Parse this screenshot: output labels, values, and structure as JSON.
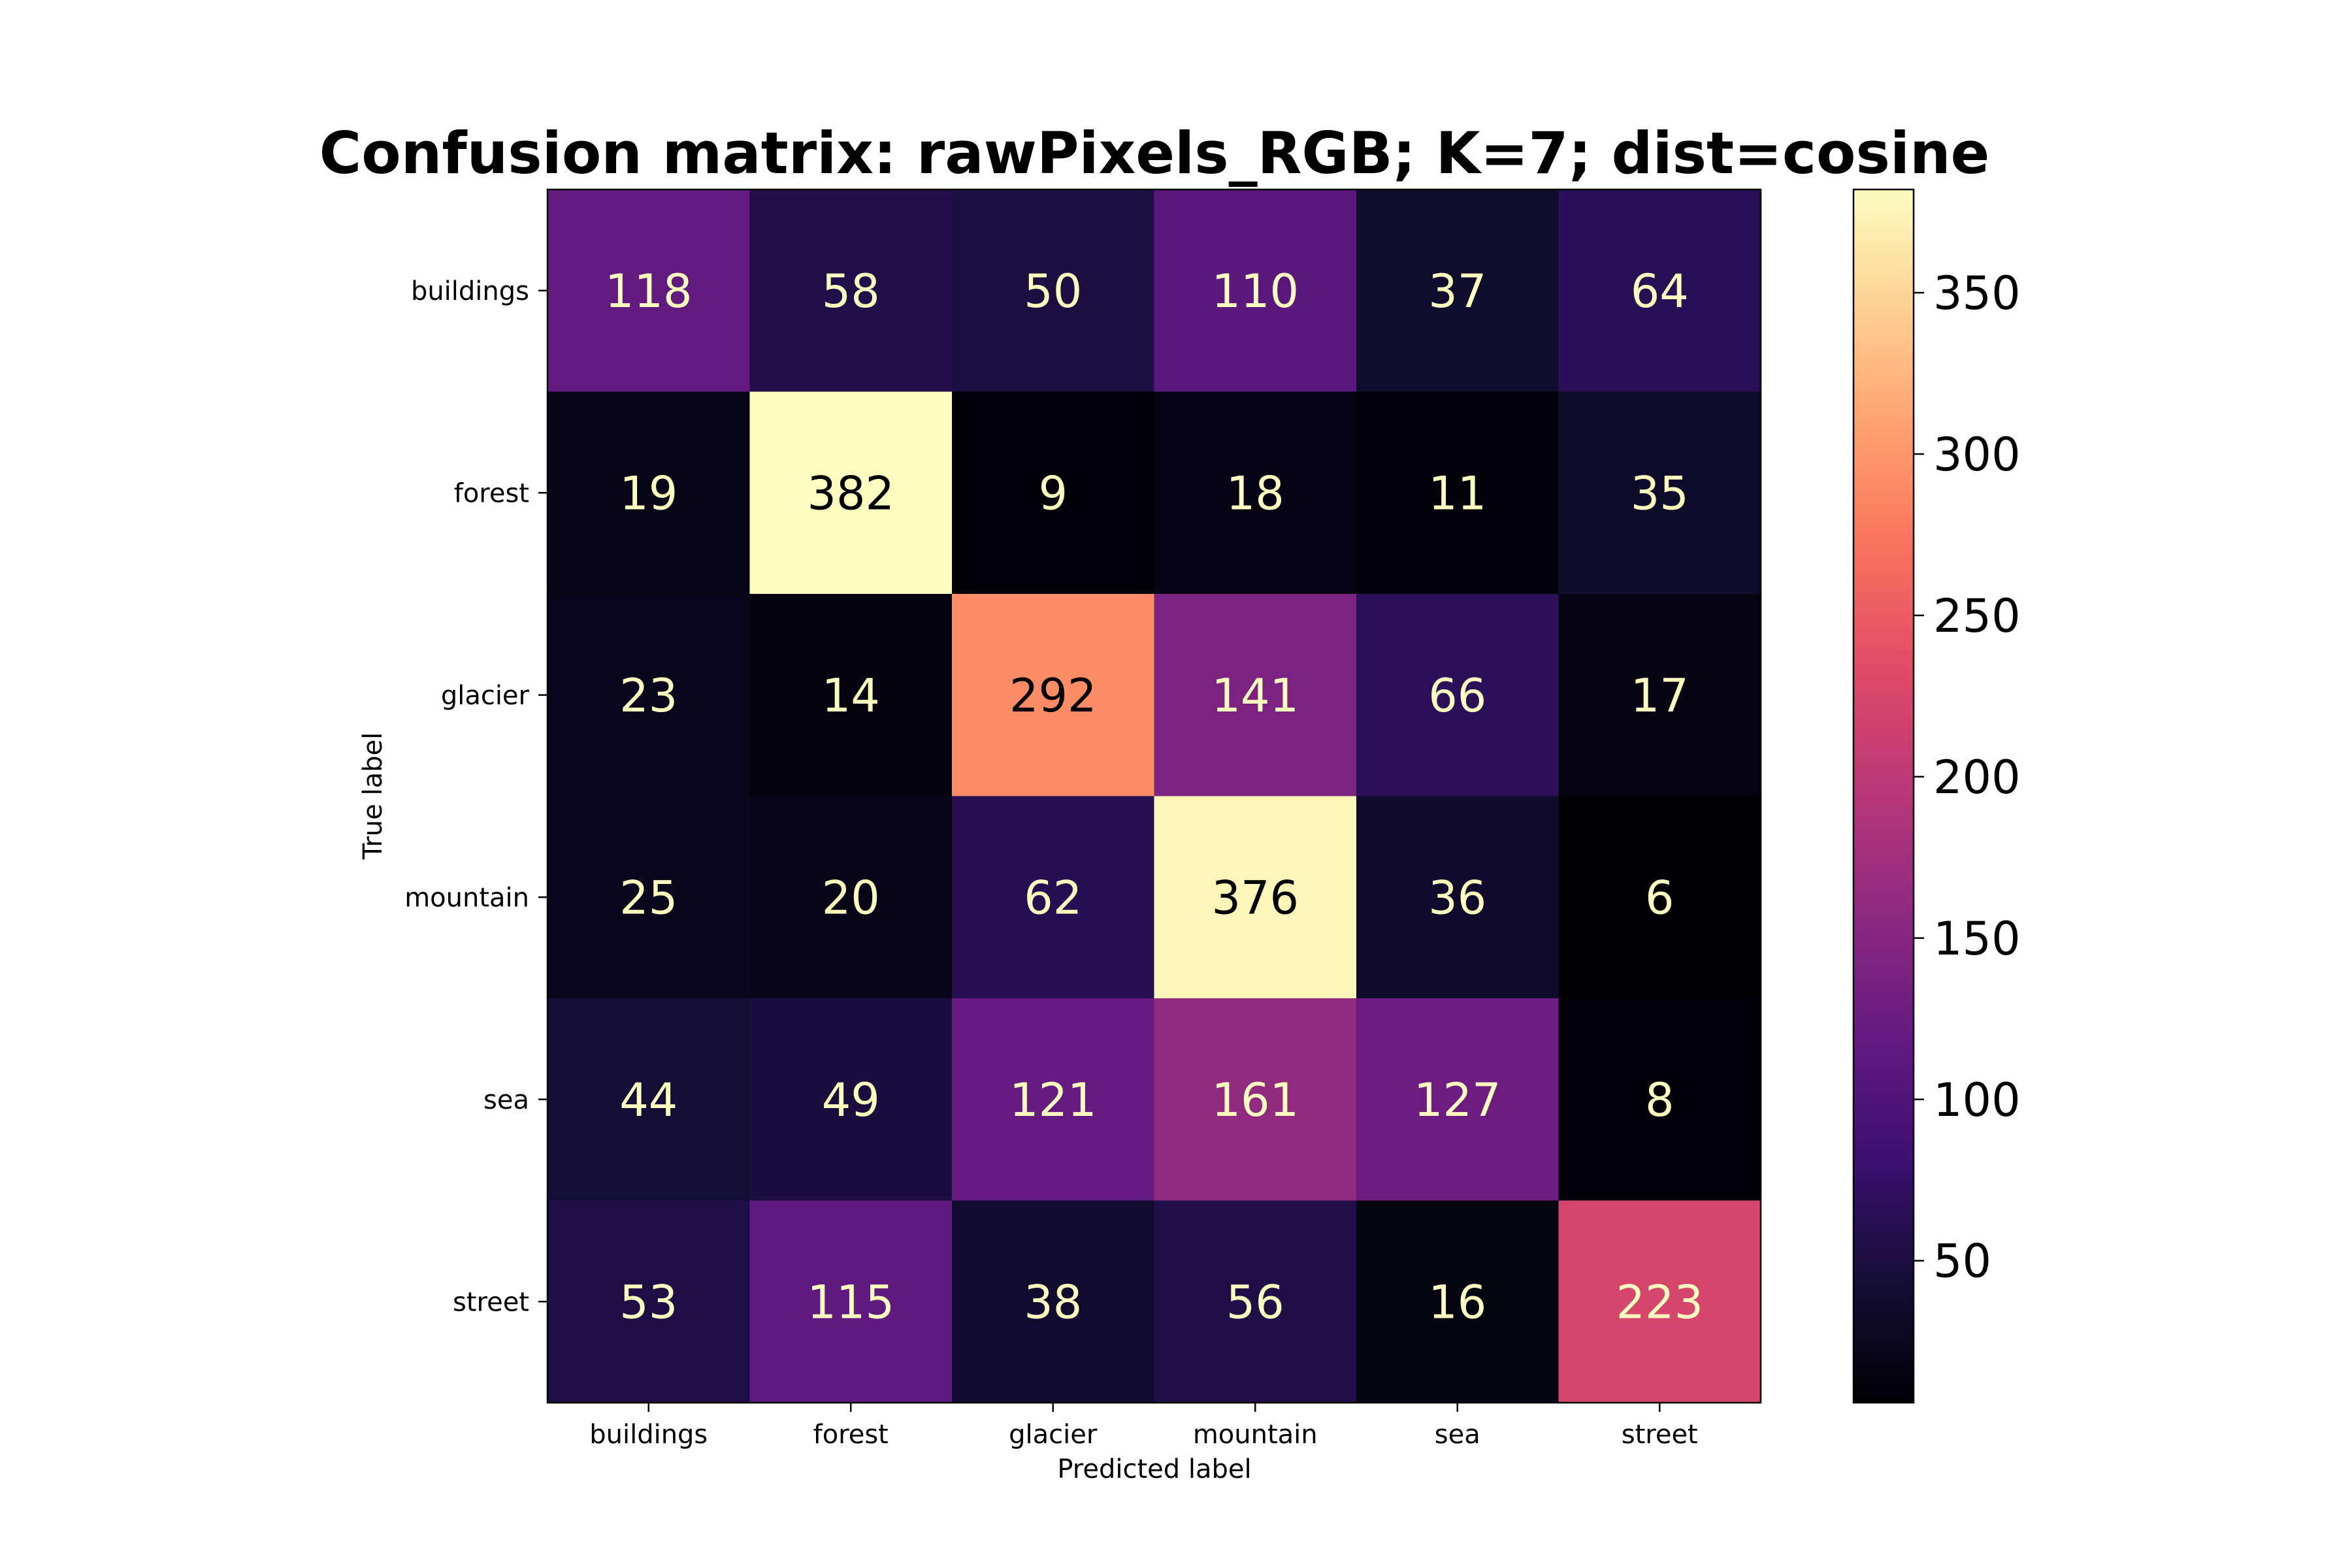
{
  "chart_data": {
    "type": "heatmap",
    "title": "Confusion matrix: rawPixels_RGB; K=7; dist=cosine",
    "xlabel": "Predicted label",
    "ylabel": "True label",
    "x_categories": [
      "buildings",
      "forest",
      "glacier",
      "mountain",
      "sea",
      "street"
    ],
    "y_categories": [
      "buildings",
      "forest",
      "glacier",
      "mountain",
      "sea",
      "street"
    ],
    "values": [
      [
        118,
        58,
        50,
        110,
        37,
        64
      ],
      [
        19,
        382,
        9,
        18,
        11,
        35
      ],
      [
        23,
        14,
        292,
        141,
        66,
        17
      ],
      [
        25,
        20,
        62,
        376,
        36,
        6
      ],
      [
        44,
        49,
        121,
        161,
        127,
        8
      ],
      [
        53,
        115,
        38,
        56,
        16,
        223
      ]
    ],
    "colormap": "magma",
    "value_range": [
      6,
      382
    ],
    "colorbar_ticks": [
      50,
      100,
      150,
      200,
      250,
      300,
      350
    ],
    "text_color_light": "#fcfdbf",
    "text_color_dark": "#000004"
  }
}
